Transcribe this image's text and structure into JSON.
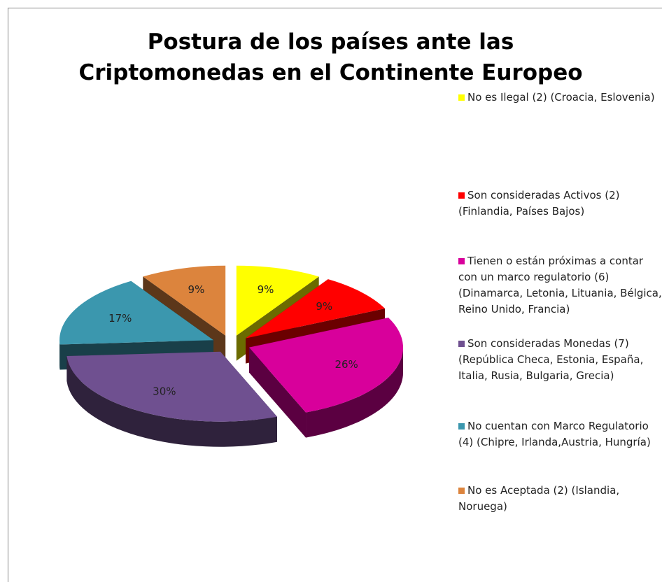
{
  "chart_data": {
    "type": "pie",
    "title": "Postura de los países ante las Criptomonedas en el Continente Europeo",
    "categories": [
      "No es Ilegal (2) (Croacia, Eslovenia)",
      "Son consideradas Activos (2) (Finlandia, Países Bajos)",
      "Tienen o están próximas a contar con un marco regulatorio (6) (Dinamarca, Letonia, Lituania, Bélgica, Reino Unido, Francia)",
      "Son consideradas Monedas  (7) (República Checa, Estonia, España, Italia, Rusia, Bulgaria, Grecia)",
      "No cuentan con Marco Regulatorio (4) (Chipre, Irlanda,Austria, Hungría)",
      "No es Aceptada (2) (Islandia, Noruega)"
    ],
    "values": [
      9,
      9,
      26,
      30,
      17,
      9
    ],
    "value_labels": [
      "9%",
      "9%",
      "26%",
      "30%",
      "17%",
      "9%"
    ],
    "colors": [
      "#ffff00",
      "#ff0000",
      "#d8009b",
      "#6f5090",
      "#3b97ae",
      "#dc843d"
    ],
    "legend": "right"
  }
}
